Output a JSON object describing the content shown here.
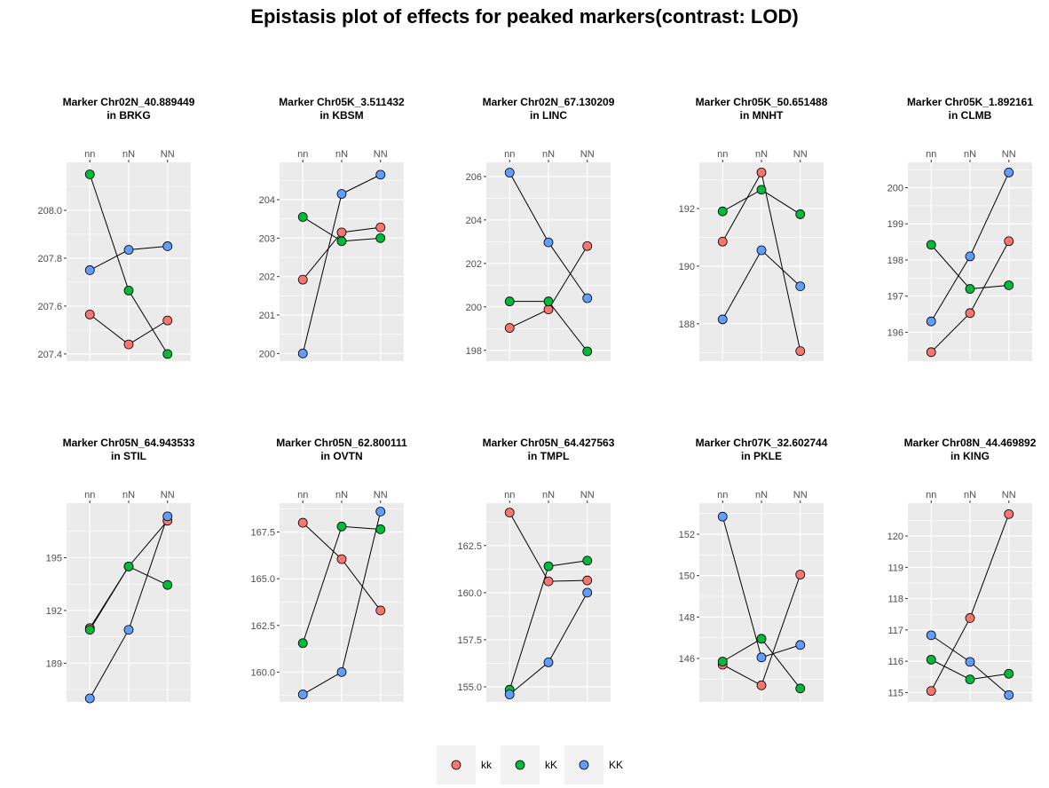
{
  "title": "Epistasis plot of effects for peaked markers(contrast: LOD)",
  "chart_data": {
    "type": "line",
    "x_categories": [
      "nn",
      "nN",
      "NN"
    ],
    "legend": {
      "position": "bottom",
      "entries": [
        {
          "label": "kk",
          "color": "#F8766D"
        },
        {
          "label": "kK",
          "color": "#00BA38"
        },
        {
          "label": "KK",
          "color": "#619CFF"
        }
      ]
    },
    "panels": [
      {
        "title_line1": "Marker Chr02N_40.889449",
        "title_line2": "in BRKG",
        "ylim": [
          207.37,
          208.2
        ],
        "yticks": [
          207.4,
          207.6,
          207.8,
          208.0
        ],
        "tick_labels": [
          "207.4",
          "207.6",
          "207.8",
          "208.0"
        ],
        "series": [
          {
            "name": "kk",
            "values": [
              207.565,
              207.44,
              207.54
            ]
          },
          {
            "name": "kK",
            "values": [
              208.15,
              207.665,
              207.4
            ]
          },
          {
            "name": "KK",
            "values": [
              207.75,
              207.835,
              207.85
            ]
          }
        ]
      },
      {
        "title_line1": "Marker Chr05K_3.511432",
        "title_line2": "in KBSM",
        "ylim": [
          199.8,
          204.97
        ],
        "yticks": [
          200,
          201,
          202,
          203,
          204
        ],
        "tick_labels": [
          "200",
          "201",
          "202",
          "203",
          "204"
        ],
        "series": [
          {
            "name": "kk",
            "values": [
              201.92,
              203.15,
              203.28
            ]
          },
          {
            "name": "kK",
            "values": [
              203.55,
              202.92,
              203.0
            ]
          },
          {
            "name": "KK",
            "values": [
              200.0,
              204.15,
              204.65
            ]
          }
        ]
      },
      {
        "title_line1": "Marker Chr02N_67.130209",
        "title_line2": "in LINC",
        "ylim": [
          197.5,
          206.65
        ],
        "yticks": [
          198,
          200,
          202,
          204,
          206
        ],
        "tick_labels": [
          "198",
          "200",
          "202",
          "204",
          "206"
        ],
        "series": [
          {
            "name": "kk",
            "values": [
              199.03,
              199.88,
              202.8
            ]
          },
          {
            "name": "kK",
            "values": [
              200.25,
              200.25,
              197.95
            ]
          },
          {
            "name": "KK",
            "values": [
              206.18,
              202.97,
              200.4
            ]
          }
        ]
      },
      {
        "title_line1": "Marker Chr05K_50.651488",
        "title_line2": "in MNHT",
        "ylim": [
          186.7,
          193.6
        ],
        "yticks": [
          188,
          190,
          192
        ],
        "tick_labels": [
          "188",
          "190",
          "192"
        ],
        "series": [
          {
            "name": "kk",
            "values": [
              190.85,
              193.25,
              187.05
            ]
          },
          {
            "name": "kK",
            "values": [
              191.9,
              192.65,
              191.8
            ]
          },
          {
            "name": "KK",
            "values": [
              188.15,
              190.55,
              189.3
            ]
          }
        ]
      },
      {
        "title_line1": "Marker Chr05K_1.892161",
        "title_line2": "in CLMB",
        "ylim": [
          195.2,
          200.7
        ],
        "yticks": [
          196,
          197,
          198,
          199,
          200
        ],
        "tick_labels": [
          "196",
          "197",
          "198",
          "199",
          "200"
        ],
        "series": [
          {
            "name": "kk",
            "values": [
              195.45,
              196.53,
              198.52
            ]
          },
          {
            "name": "kK",
            "values": [
              198.42,
              197.2,
              197.3
            ]
          },
          {
            "name": "KK",
            "values": [
              196.3,
              198.1,
              200.42
            ]
          }
        ]
      },
      {
        "title_line1": "Marker Chr05N_64.943533",
        "title_line2": "in STIL",
        "ylim": [
          186.8,
          198.1
        ],
        "yticks": [
          189,
          192,
          195
        ],
        "tick_labels": [
          "189",
          "192",
          "195"
        ],
        "series": [
          {
            "name": "kk",
            "values": [
              191.0,
              194.5,
              197.1
            ]
          },
          {
            "name": "kK",
            "values": [
              190.9,
              194.5,
              193.45
            ]
          },
          {
            "name": "KK",
            "values": [
              187.0,
              190.9,
              197.35
            ]
          }
        ]
      },
      {
        "title_line1": "Marker Chr05N_62.800111",
        "title_line2": "in OVTN",
        "ylim": [
          158.4,
          169.05
        ],
        "yticks": [
          160.0,
          162.5,
          165.0,
          167.5
        ],
        "tick_labels": [
          "160.0",
          "162.5",
          "165.0",
          "167.5"
        ],
        "series": [
          {
            "name": "kk",
            "values": [
              168.0,
              166.05,
              163.3
            ]
          },
          {
            "name": "kK",
            "values": [
              161.55,
              167.8,
              167.65
            ]
          },
          {
            "name": "KK",
            "values": [
              158.8,
              160.0,
              168.6
            ]
          }
        ]
      },
      {
        "title_line1": "Marker Chr05N_64.427563",
        "title_line2": "in TMPL",
        "ylim": [
          154.2,
          164.75
        ],
        "yticks": [
          155.0,
          157.5,
          160.0,
          162.5
        ],
        "tick_labels": [
          "155.0",
          "157.5",
          "160.0",
          "162.5"
        ],
        "series": [
          {
            "name": "kk",
            "values": [
              164.25,
              160.6,
              160.65
            ]
          },
          {
            "name": "kK",
            "values": [
              154.85,
              161.4,
              161.7
            ]
          },
          {
            "name": "KK",
            "values": [
              154.6,
              156.3,
              160.0
            ]
          }
        ]
      },
      {
        "title_line1": "Marker Chr07K_32.602744",
        "title_line2": "in PKLE",
        "ylim": [
          143.9,
          153.5
        ],
        "yticks": [
          146,
          148,
          150,
          152
        ],
        "tick_labels": [
          "146",
          "148",
          "150",
          "152"
        ],
        "series": [
          {
            "name": "kk",
            "values": [
              145.7,
              144.7,
              150.05
            ]
          },
          {
            "name": "kK",
            "values": [
              145.85,
              146.95,
              144.55
            ]
          },
          {
            "name": "KK",
            "values": [
              152.85,
              146.05,
              146.65
            ]
          }
        ]
      },
      {
        "title_line1": "Marker Chr08N_44.469892",
        "title_line2": "in KING",
        "ylim": [
          114.7,
          121.05
        ],
        "yticks": [
          115,
          116,
          117,
          118,
          119,
          120
        ],
        "tick_labels": [
          "115",
          "116",
          "117",
          "118",
          "119",
          "120"
        ],
        "series": [
          {
            "name": "kk",
            "values": [
              115.05,
              117.38,
              120.7
            ]
          },
          {
            "name": "kK",
            "values": [
              116.05,
              115.42,
              115.6
            ]
          },
          {
            "name": "KK",
            "values": [
              116.83,
              115.98,
              114.92
            ]
          }
        ]
      }
    ]
  }
}
